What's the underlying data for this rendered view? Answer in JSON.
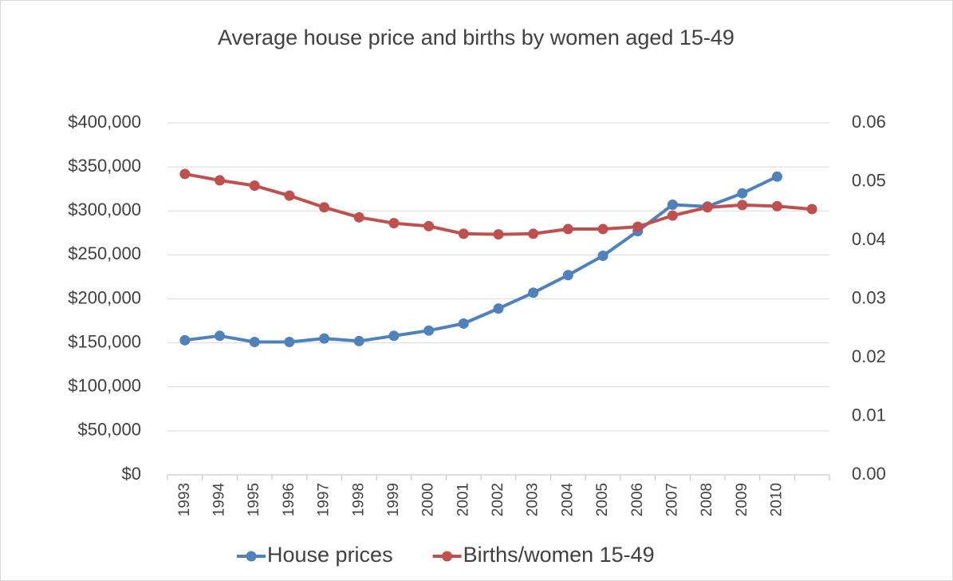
{
  "chart_data": {
    "type": "line",
    "title": "Average house price and births by women aged 15-49",
    "categories": [
      "1993",
      "1994",
      "1995",
      "1996",
      "1997",
      "1998",
      "1999",
      "2000",
      "2001",
      "2002",
      "2003",
      "2004",
      "2005",
      "2006",
      "2007",
      "2008",
      "2009",
      "2010",
      null
    ],
    "series": [
      {
        "name": "House prices",
        "color": "#4f81bd",
        "values": [
          153000,
          158000,
          151000,
          151000,
          155000,
          152000,
          158000,
          164000,
          172000,
          189000,
          207000,
          227000,
          249000,
          277000,
          307000,
          305000,
          320000,
          339000,
          null
        ]
      },
      {
        "name": "Births/women 15-49",
        "color": "#c0504d",
        "axis": "y2",
        "values": [
          0.0513,
          0.0502,
          0.0493,
          0.0476,
          0.0456,
          0.0439,
          0.0429,
          0.0424,
          0.0411,
          0.041,
          0.0411,
          0.0419,
          0.0419,
          0.0423,
          0.0442,
          0.0456,
          0.046,
          0.0458,
          0.0453
        ]
      }
    ],
    "ylim": [
      0,
      400000
    ],
    "yticks": [
      {
        "value": 0,
        "label": "$0"
      },
      {
        "value": 50000,
        "label": "$50,000"
      },
      {
        "value": 100000,
        "label": "$100,000"
      },
      {
        "value": 150000,
        "label": "$150,000"
      },
      {
        "value": 200000,
        "label": "$200,000"
      },
      {
        "value": 250000,
        "label": "$250,000"
      },
      {
        "value": 300000,
        "label": "$300,000"
      },
      {
        "value": 350000,
        "label": "$350,000"
      },
      {
        "value": 400000,
        "label": "$400,000"
      }
    ],
    "y2lim": [
      0,
      0.06
    ],
    "y2ticks": [
      {
        "value": 0,
        "label": "0.00"
      },
      0.01,
      0.02,
      0.03,
      0.04,
      0.05,
      0.06
    ],
    "grid": true,
    "legend": "bottom"
  }
}
